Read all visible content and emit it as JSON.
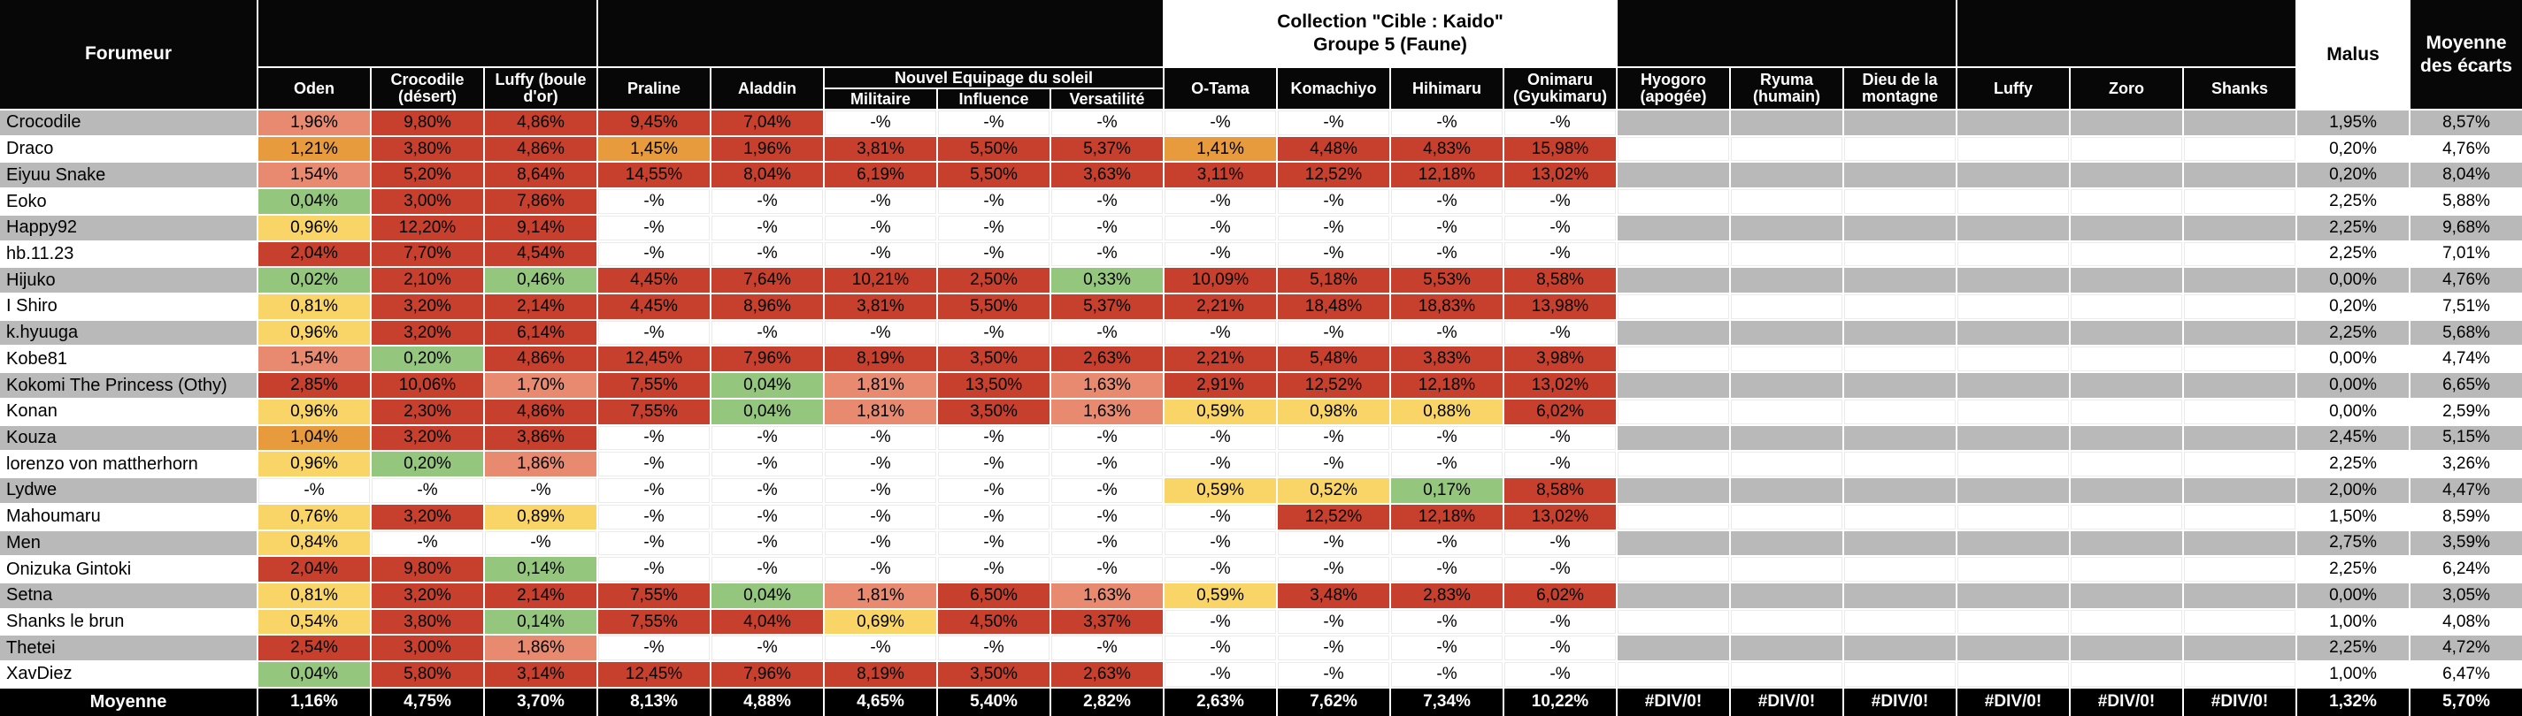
{
  "colors": {
    "bad_red": "#c7402d",
    "warn_salmon": "#e78a70",
    "warn_orange": "#e89b3c",
    "mid_yellow": "#f8d566",
    "good_green": "#94c77d",
    "row_stripe_gray": "#b9b9b9",
    "header_black": "#070707",
    "grid_white": "#ffffff"
  },
  "header": {
    "forumeur_label": "Forumeur",
    "collection_line1": "Collection \"Cible : Kaido\"",
    "collection_line2": "Groupe 5 (Faune)",
    "nes_label": "Nouvel Equipage du soleil",
    "malus_label": "Malus",
    "avg_line1": "Moyenne",
    "avg_line2": "des écarts",
    "columns": [
      "Oden",
      "Crocodile (désert)",
      "Luffy (boule d'or)",
      "Praline",
      "Aladdin",
      "Militaire",
      "Influence",
      "Versatilité",
      "O-Tama",
      "Komachiyo",
      "Hihimaru",
      "Onimaru (Gyukimaru)",
      "Hyogoro (apogée)",
      "Ryuma (humain)",
      "Dieu de la montagne",
      "Luffy",
      "Zoro",
      "Shanks"
    ]
  },
  "rows": [
    {
      "name": "Crocodile",
      "cells": [
        "1,96%|s",
        "9,80%|r",
        "4,86%|r",
        "9,45%|r",
        "7,04%|r",
        "-%|w",
        "-%|w",
        "-%|w",
        "-%|w",
        "-%|w",
        "-%|w",
        "-%|w",
        "|e",
        "|e",
        "|e",
        "|e",
        "|e",
        "|e"
      ],
      "malus": "1,95%",
      "avg": "8,57%"
    },
    {
      "name": "Draco",
      "cells": [
        "1,21%|o",
        "3,80%|r",
        "4,86%|r",
        "1,45%|o",
        "1,96%|r",
        "3,81%|r",
        "5,50%|r",
        "5,37%|r",
        "1,41%|o",
        "4,48%|r",
        "4,83%|r",
        "15,98%|r",
        "|e",
        "|e",
        "|e",
        "|e",
        "|e",
        "|e"
      ],
      "malus": "0,20%",
      "avg": "4,76%"
    },
    {
      "name": "Eiyuu Snake",
      "cells": [
        "1,54%|s",
        "5,20%|r",
        "8,64%|r",
        "14,55%|r",
        "8,04%|r",
        "6,19%|r",
        "5,50%|r",
        "3,63%|r",
        "3,11%|r",
        "12,52%|r",
        "12,18%|r",
        "13,02%|r",
        "|e",
        "|e",
        "|e",
        "|e",
        "|e",
        "|e"
      ],
      "malus": "0,20%",
      "avg": "8,04%"
    },
    {
      "name": "Eoko",
      "cells": [
        "0,04%|g",
        "3,00%|r",
        "7,86%|r",
        "-%|w",
        "-%|w",
        "-%|w",
        "-%|w",
        "-%|w",
        "-%|w",
        "-%|w",
        "-%|w",
        "-%|w",
        "|e",
        "|e",
        "|e",
        "|e",
        "|e",
        "|e"
      ],
      "malus": "2,25%",
      "avg": "5,88%"
    },
    {
      "name": "Happy92",
      "cells": [
        "0,96%|y",
        "12,20%|r",
        "9,14%|r",
        "-%|w",
        "-%|w",
        "-%|w",
        "-%|w",
        "-%|w",
        "-%|w",
        "-%|w",
        "-%|w",
        "-%|w",
        "|e",
        "|e",
        "|e",
        "|e",
        "|e",
        "|e"
      ],
      "malus": "2,25%",
      "avg": "9,68%"
    },
    {
      "name": "hb.11.23",
      "cells": [
        "2,04%|r",
        "7,70%|r",
        "4,54%|r",
        "-%|w",
        "-%|w",
        "-%|w",
        "-%|w",
        "-%|w",
        "-%|w",
        "-%|w",
        "-%|w",
        "-%|w",
        "|e",
        "|e",
        "|e",
        "|e",
        "|e",
        "|e"
      ],
      "malus": "2,25%",
      "avg": "7,01%"
    },
    {
      "name": "Hijuko",
      "cells": [
        "0,02%|g",
        "2,10%|r",
        "0,46%|g",
        "4,45%|r",
        "7,64%|r",
        "10,21%|r",
        "2,50%|r",
        "0,33%|g",
        "10,09%|r",
        "5,18%|r",
        "5,53%|r",
        "8,58%|r",
        "|e",
        "|e",
        "|e",
        "|e",
        "|e",
        "|e"
      ],
      "malus": "0,00%",
      "avg": "4,76%"
    },
    {
      "name": "I Shiro",
      "cells": [
        "0,81%|y",
        "3,20%|r",
        "2,14%|r",
        "4,45%|r",
        "8,96%|r",
        "3,81%|r",
        "5,50%|r",
        "5,37%|r",
        "2,21%|r",
        "18,48%|r",
        "18,83%|r",
        "13,98%|r",
        "|e",
        "|e",
        "|e",
        "|e",
        "|e",
        "|e"
      ],
      "malus": "0,20%",
      "avg": "7,51%"
    },
    {
      "name": "k.hyuuga",
      "cells": [
        "0,96%|y",
        "3,20%|r",
        "6,14%|r",
        "-%|w",
        "-%|w",
        "-%|w",
        "-%|w",
        "-%|w",
        "-%|w",
        "-%|w",
        "-%|w",
        "-%|w",
        "|e",
        "|e",
        "|e",
        "|e",
        "|e",
        "|e"
      ],
      "malus": "2,25%",
      "avg": "5,68%"
    },
    {
      "name": "Kobe81",
      "cells": [
        "1,54%|s",
        "0,20%|g",
        "4,86%|r",
        "12,45%|r",
        "7,96%|r",
        "8,19%|r",
        "3,50%|r",
        "2,63%|r",
        "2,21%|r",
        "5,48%|r",
        "3,83%|r",
        "3,98%|r",
        "|e",
        "|e",
        "|e",
        "|e",
        "|e",
        "|e"
      ],
      "malus": "0,00%",
      "avg": "4,74%"
    },
    {
      "name": "Kokomi The Princess (Othy)",
      "cells": [
        "2,85%|r",
        "10,06%|r",
        "1,70%|s",
        "7,55%|r",
        "0,04%|g",
        "1,81%|s",
        "13,50%|r",
        "1,63%|s",
        "2,91%|r",
        "12,52%|r",
        "12,18%|r",
        "13,02%|r",
        "|e",
        "|e",
        "|e",
        "|e",
        "|e",
        "|e"
      ],
      "malus": "0,00%",
      "avg": "6,65%"
    },
    {
      "name": "Konan",
      "cells": [
        "0,96%|y",
        "2,30%|r",
        "4,86%|r",
        "7,55%|r",
        "0,04%|g",
        "1,81%|s",
        "3,50%|r",
        "1,63%|s",
        "0,59%|y",
        "0,98%|y",
        "0,88%|y",
        "6,02%|r",
        "|e",
        "|e",
        "|e",
        "|e",
        "|e",
        "|e"
      ],
      "malus": "0,00%",
      "avg": "2,59%"
    },
    {
      "name": "Kouza",
      "cells": [
        "1,04%|o",
        "3,20%|r",
        "3,86%|r",
        "-%|w",
        "-%|w",
        "-%|w",
        "-%|w",
        "-%|w",
        "-%|w",
        "-%|w",
        "-%|w",
        "-%|w",
        "|e",
        "|e",
        "|e",
        "|e",
        "|e",
        "|e"
      ],
      "malus": "2,45%",
      "avg": "5,15%"
    },
    {
      "name": "lorenzo von mattherhorn",
      "cells": [
        "0,96%|y",
        "0,20%|g",
        "1,86%|s",
        "-%|w",
        "-%|w",
        "-%|w",
        "-%|w",
        "-%|w",
        "-%|w",
        "-%|w",
        "-%|w",
        "-%|w",
        "|e",
        "|e",
        "|e",
        "|e",
        "|e",
        "|e"
      ],
      "malus": "2,25%",
      "avg": "3,26%"
    },
    {
      "name": "Lydwe",
      "cells": [
        "-%|w",
        "-%|w",
        "-%|w",
        "-%|w",
        "-%|w",
        "-%|w",
        "-%|w",
        "-%|w",
        "0,59%|y",
        "0,52%|y",
        "0,17%|g",
        "8,58%|r",
        "|e",
        "|e",
        "|e",
        "|e",
        "|e",
        "|e"
      ],
      "malus": "2,00%",
      "avg": "4,47%"
    },
    {
      "name": "Mahoumaru",
      "cells": [
        "0,76%|y",
        "3,20%|r",
        "0,89%|y",
        "-%|w",
        "-%|w",
        "-%|w",
        "-%|w",
        "-%|w",
        "-%|w",
        "12,52%|r",
        "12,18%|r",
        "13,02%|r",
        "|e",
        "|e",
        "|e",
        "|e",
        "|e",
        "|e"
      ],
      "malus": "1,50%",
      "avg": "8,59%"
    },
    {
      "name": "Men",
      "cells": [
        "0,84%|y",
        "-%|w",
        "-%|w",
        "-%|w",
        "-%|w",
        "-%|w",
        "-%|w",
        "-%|w",
        "-%|w",
        "-%|w",
        "-%|w",
        "-%|w",
        "|e",
        "|e",
        "|e",
        "|e",
        "|e",
        "|e"
      ],
      "malus": "2,75%",
      "avg": "3,59%"
    },
    {
      "name": "Onizuka Gintoki",
      "cells": [
        "2,04%|r",
        "9,80%|r",
        "0,14%|g",
        "-%|w",
        "-%|w",
        "-%|w",
        "-%|w",
        "-%|w",
        "-%|w",
        "-%|w",
        "-%|w",
        "-%|w",
        "|e",
        "|e",
        "|e",
        "|e",
        "|e",
        "|e"
      ],
      "malus": "2,25%",
      "avg": "6,24%"
    },
    {
      "name": "Setna",
      "cells": [
        "0,81%|y",
        "3,20%|r",
        "2,14%|r",
        "7,55%|r",
        "0,04%|g",
        "1,81%|s",
        "6,50%|r",
        "1,63%|s",
        "0,59%|y",
        "3,48%|r",
        "2,83%|r",
        "6,02%|r",
        "|e",
        "|e",
        "|e",
        "|e",
        "|e",
        "|e"
      ],
      "malus": "0,00%",
      "avg": "3,05%"
    },
    {
      "name": "Shanks le brun",
      "cells": [
        "0,54%|y",
        "3,80%|r",
        "0,14%|g",
        "7,55%|r",
        "4,04%|r",
        "0,69%|y",
        "4,50%|r",
        "3,37%|r",
        "-%|w",
        "-%|w",
        "-%|w",
        "-%|w",
        "|e",
        "|e",
        "|e",
        "|e",
        "|e",
        "|e"
      ],
      "malus": "1,00%",
      "avg": "4,08%"
    },
    {
      "name": "Thetei",
      "cells": [
        "2,54%|r",
        "3,00%|r",
        "1,86%|s",
        "-%|w",
        "-%|w",
        "-%|w",
        "-%|w",
        "-%|w",
        "-%|w",
        "-%|w",
        "-%|w",
        "-%|w",
        "|e",
        "|e",
        "|e",
        "|e",
        "|e",
        "|e"
      ],
      "malus": "2,25%",
      "avg": "4,72%"
    },
    {
      "name": "XavDiez",
      "cells": [
        "0,04%|g",
        "5,80%|r",
        "3,14%|r",
        "12,45%|r",
        "7,96%|r",
        "8,19%|r",
        "3,50%|r",
        "2,63%|r",
        "-%|w",
        "-%|w",
        "-%|w",
        "-%|w",
        "|e",
        "|e",
        "|e",
        "|e",
        "|e",
        "|e"
      ],
      "malus": "1,00%",
      "avg": "6,47%"
    }
  ],
  "moyenne": {
    "label": "Moyenne",
    "cells": [
      "1,16%",
      "4,75%",
      "3,70%",
      "8,13%",
      "4,88%",
      "4,65%",
      "5,40%",
      "2,82%",
      "2,63%",
      "7,62%",
      "7,34%",
      "10,22%",
      "#DIV/0!",
      "#DIV/0!",
      "#DIV/0!",
      "#DIV/0!",
      "#DIV/0!",
      "#DIV/0!"
    ],
    "malus": "1,32%",
    "avg": "5,70%"
  }
}
